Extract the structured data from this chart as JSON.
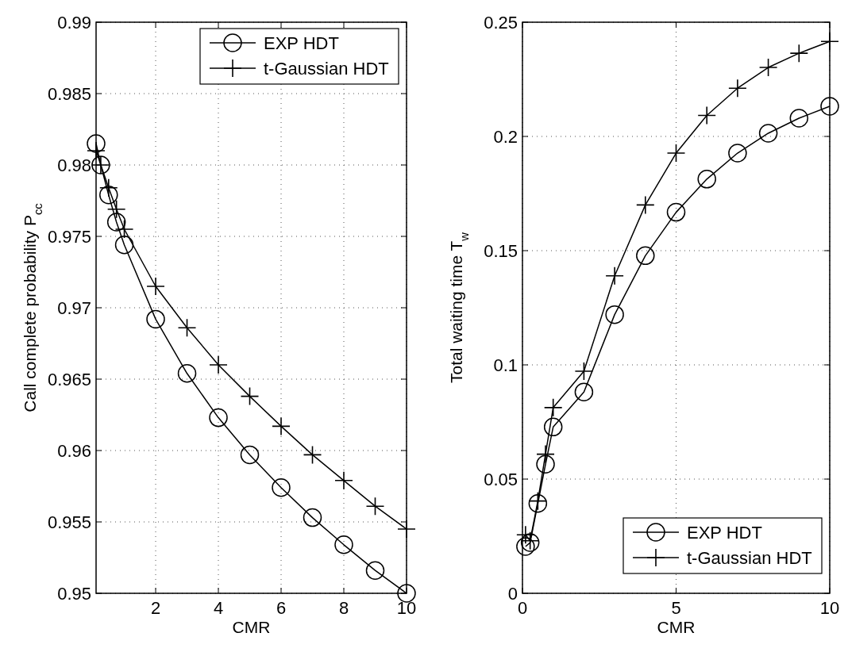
{
  "chart_data": [
    {
      "type": "line",
      "xlabel": "CMR",
      "ylabel": "Call complete probability P$_{cc}$",
      "xlim": [
        0.1,
        10
      ],
      "xticks": [
        2,
        4,
        6,
        8,
        10
      ],
      "ylim": [
        0.95,
        0.99
      ],
      "yticks": [
        0.95,
        0.955,
        0.96,
        0.965,
        0.97,
        0.975,
        0.98,
        0.985,
        0.99
      ],
      "grid": true,
      "legend": "top right",
      "series": [
        {
          "name": "EXP HDT",
          "color": "#000000",
          "marker": "circle",
          "x": [
            0.1,
            0.25,
            0.5,
            0.75,
            1,
            2,
            3,
            4,
            5,
            6,
            7,
            8,
            9,
            10
          ],
          "values": [
            0.9815,
            0.98,
            0.9779,
            0.976,
            0.9744,
            0.9692,
            0.9654,
            0.9623,
            0.9597,
            0.9574,
            0.9553,
            0.9534,
            0.9516,
            0.95
          ]
        },
        {
          "name": "t-Gaussian HDT",
          "color": "#000000",
          "marker": "cross",
          "x": [
            0.1,
            0.25,
            0.5,
            0.75,
            1,
            2,
            3,
            4,
            5,
            6,
            7,
            8,
            9,
            10
          ],
          "values": [
            0.981,
            0.98,
            0.9784,
            0.9769,
            0.9755,
            0.9715,
            0.9686,
            0.966,
            0.9638,
            0.9617,
            0.9597,
            0.9579,
            0.9561,
            0.9545
          ]
        }
      ]
    },
    {
      "type": "line",
      "xlabel": "CMR",
      "ylabel": "Total waiting time T$_{w}$",
      "xlim": [
        0,
        10
      ],
      "xticks": [
        0,
        5,
        10
      ],
      "ylim": [
        0,
        0.25
      ],
      "yticks": [
        0,
        0.05,
        0.1,
        0.15,
        0.2,
        0.25
      ],
      "grid": true,
      "legend": "bottom right",
      "series": [
        {
          "name": "EXP HDT",
          "color": "#000000",
          "marker": "circle",
          "x": [
            0.1,
            0.25,
            0.5,
            0.75,
            1,
            2,
            3,
            4,
            5,
            6,
            7,
            8,
            9,
            10
          ],
          "values": [
            0.0205,
            0.0222,
            0.0393,
            0.0565,
            0.0728,
            0.0881,
            0.122,
            0.1478,
            0.1668,
            0.1813,
            0.1927,
            0.2014,
            0.208,
            0.2132
          ]
        },
        {
          "name": "t-Gaussian HDT",
          "color": "#000000",
          "marker": "cross",
          "x": [
            0.1,
            0.25,
            0.5,
            0.75,
            1,
            2,
            3,
            4,
            5,
            6,
            7,
            8,
            9,
            10
          ],
          "values": [
            0.0256,
            0.023,
            0.0404,
            0.0609,
            0.0813,
            0.0972,
            0.139,
            0.17,
            0.1927,
            0.2092,
            0.2211,
            0.2302,
            0.2364,
            0.2416
          ]
        }
      ]
    }
  ]
}
